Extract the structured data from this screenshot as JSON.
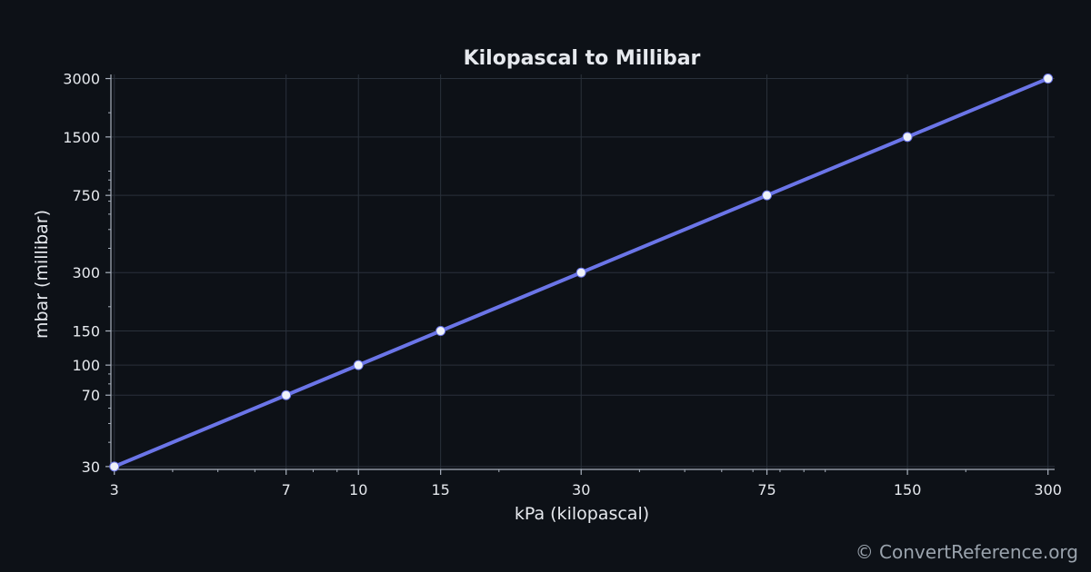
{
  "chart_data": {
    "type": "line",
    "title": "Kilopascal to Millibar",
    "xlabel": "kPa (kilopascal)",
    "ylabel": "mbar (millibar)",
    "xscale": "log",
    "yscale": "log",
    "xlim": [
      2.95,
      310
    ],
    "ylim": [
      29,
      3150
    ],
    "x_ticks": [
      3,
      7,
      10,
      15,
      30,
      75,
      150,
      300
    ],
    "y_ticks": [
      30,
      70,
      100,
      150,
      300,
      750,
      1500,
      3000
    ],
    "grid": true,
    "series": [
      {
        "x": [
          3,
          7,
          10,
          15,
          30,
          75,
          150,
          300
        ],
        "y": [
          30,
          70,
          100,
          150,
          300,
          750,
          1500,
          3000
        ]
      }
    ]
  },
  "colors": {
    "background": "#0d1117",
    "line": "#6b75e8",
    "marker": "#eef1f8",
    "grid": "#2a313b",
    "axis": "#a9b1bd",
    "text": "#e6e9ee"
  },
  "footer": {
    "watermark": "© ConvertReference.org"
  }
}
